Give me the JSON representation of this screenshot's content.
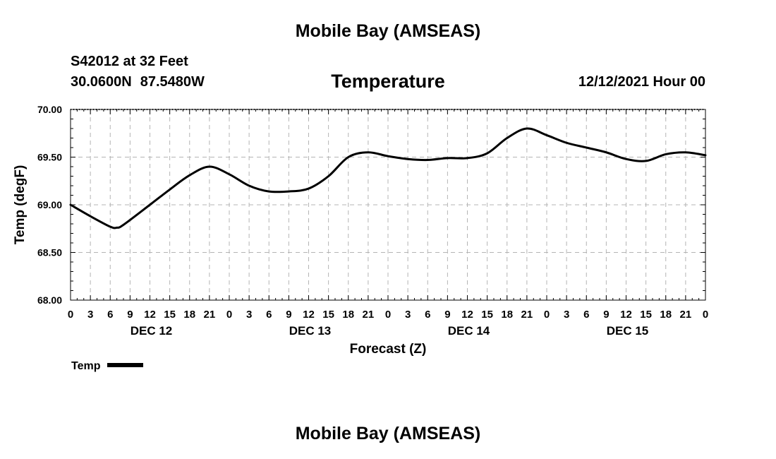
{
  "header": {
    "title": "Mobile Bay (AMSEAS)",
    "station": "S42012 at 32 Feet",
    "lat": "30.0600N",
    "lon": "87.5480W",
    "chart_title": "Temperature",
    "date": "12/12/2021 Hour 00"
  },
  "legend": {
    "label": "Temp",
    "color": "#000000"
  },
  "footer": {
    "title": "Mobile Bay (AMSEAS)"
  },
  "chart_data": {
    "type": "line",
    "title": "Temperature",
    "xlabel": "Forecast (Z)",
    "ylabel": "Temp (degF)",
    "ylim": [
      68.0,
      70.0
    ],
    "xlim": [
      0,
      96
    ],
    "yticks": [
      "68.00",
      "68.50",
      "69.00",
      "69.50",
      "70.00"
    ],
    "xtick_labels": [
      "0",
      "3",
      "6",
      "9",
      "12",
      "15",
      "18",
      "21",
      "0",
      "3",
      "6",
      "9",
      "12",
      "15",
      "18",
      "21",
      "0",
      "3",
      "6",
      "9",
      "12",
      "15",
      "18",
      "21",
      "0",
      "3",
      "6",
      "9",
      "12",
      "15",
      "18",
      "21",
      "0"
    ],
    "day_labels": [
      "DEC 12",
      "DEC 13",
      "DEC 14",
      "DEC 15"
    ],
    "grid": true,
    "legend_position": "bottom-left",
    "series": [
      {
        "name": "Temp",
        "color": "#000000",
        "x": [
          0,
          3,
          6,
          7,
          8,
          12,
          15,
          18,
          21,
          24,
          27,
          30,
          33,
          36,
          39,
          42,
          45,
          48,
          51,
          54,
          57,
          60,
          63,
          66,
          69,
          72,
          75,
          78,
          81,
          84,
          87,
          90,
          93,
          96
        ],
        "values": [
          69.0,
          68.88,
          68.77,
          68.76,
          68.79,
          69.0,
          69.16,
          69.31,
          69.4,
          69.32,
          69.2,
          69.14,
          69.14,
          69.17,
          69.3,
          69.5,
          69.55,
          69.51,
          69.48,
          69.47,
          69.49,
          69.49,
          69.54,
          69.7,
          69.8,
          69.73,
          69.65,
          69.6,
          69.55,
          69.48,
          69.46,
          69.53,
          69.55,
          69.52
        ]
      }
    ]
  }
}
